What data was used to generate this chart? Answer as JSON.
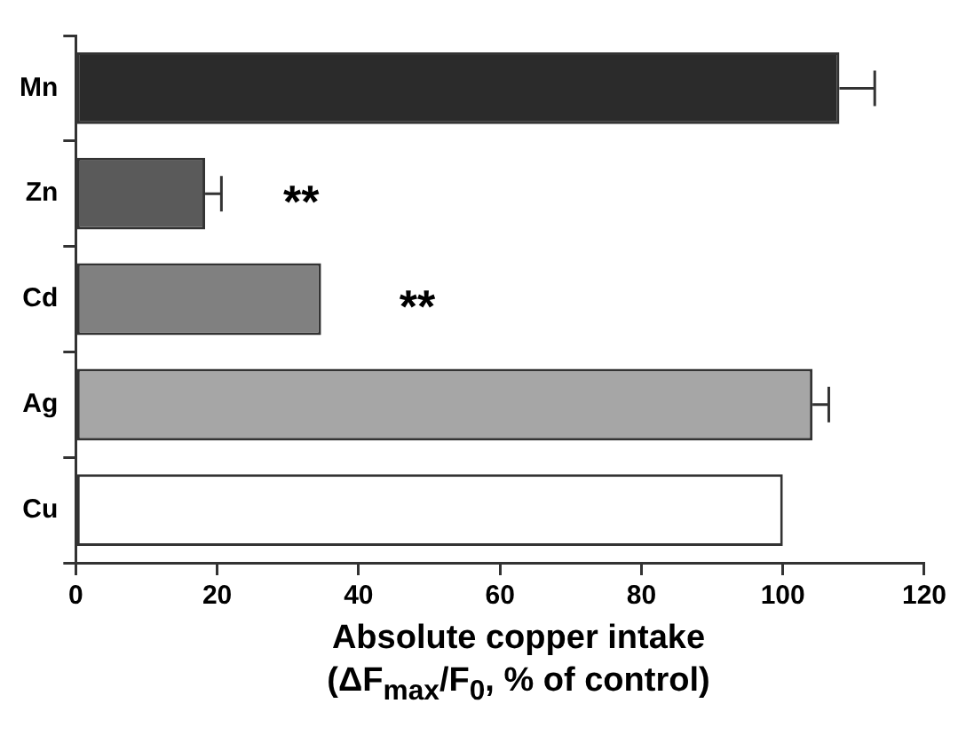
{
  "chart_data": {
    "type": "bar",
    "orientation": "horizontal",
    "categories": [
      "Mn",
      "Zn",
      "Cd",
      "Ag",
      "Cu"
    ],
    "values": [
      108,
      18.3,
      34.7,
      104.2,
      100
    ],
    "colors": [
      "#2b2b2b",
      "#5a5a5a",
      "#808080",
      "#a6a6a6",
      "#ffffff"
    ],
    "errors": [
      [
        108,
        113
      ],
      [
        18.3,
        20.6
      ],
      null,
      [
        104.2,
        106.5
      ],
      null
    ],
    "xlim": [
      0,
      120
    ],
    "xticks": [
      0,
      20,
      40,
      60,
      80,
      100,
      120
    ],
    "xlabel": "Absolute copper intake\n(ΔF$_{max}$/F$_{0}$, % of control)",
    "annotations": [
      {
        "text": "**",
        "x": 18.3,
        "y": "Zn"
      },
      {
        "text": "**",
        "x": 34.7,
        "y": "Cd"
      }
    ]
  }
}
